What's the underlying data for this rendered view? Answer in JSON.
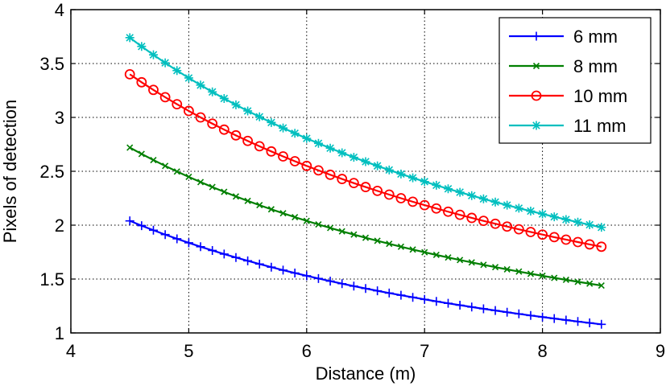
{
  "chart_data": {
    "type": "line",
    "title": "",
    "xlabel": "Distance (m)",
    "ylabel": "Pixels of detection",
    "xlim": [
      4,
      9
    ],
    "ylim": [
      1,
      4
    ],
    "xticks": [
      "4",
      "5",
      "6",
      "7",
      "8",
      "9"
    ],
    "yticks": [
      "1",
      "1.5",
      "2",
      "2.5",
      "3",
      "3.5",
      "4"
    ],
    "grid": true,
    "grid_style": "dotted",
    "legend_position": "top-right",
    "x_range": {
      "start": 4.5,
      "end": 8.5,
      "step": 0.1
    },
    "series": [
      {
        "name": "6 mm",
        "color": "#0000ff",
        "marker": "plus",
        "k": 9.18
      },
      {
        "name": "8 mm",
        "color": "#007f00",
        "marker": "x",
        "k": 12.24
      },
      {
        "name": "10 mm",
        "color": "#ff0000",
        "marker": "circle",
        "k": 15.3
      },
      {
        "name": "11 mm",
        "color": "#00bfbf",
        "marker": "star",
        "k": 16.83
      }
    ],
    "model": "y = k / x"
  }
}
